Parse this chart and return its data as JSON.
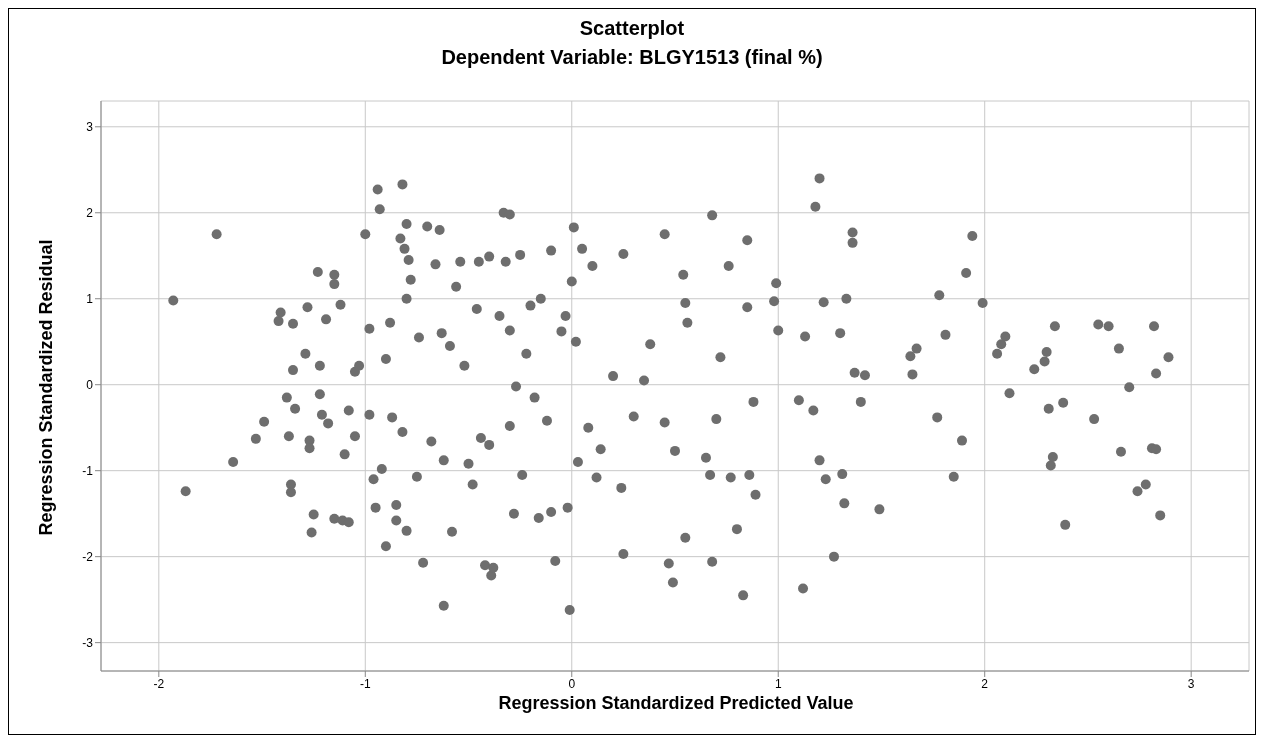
{
  "chart_data": {
    "type": "scatter",
    "title": "Scatterplot",
    "subtitle": "Dependent Variable: BLGY1513 (final %)",
    "xlabel": "Regression Standardized Predicted Value",
    "ylabel": "Regression Standardized Residual",
    "xlim": [
      -2.28,
      3.28
    ],
    "ylim": [
      -3.33,
      3.3
    ],
    "xticks": [
      -2,
      -1,
      0,
      1,
      2,
      3
    ],
    "yticks": [
      -3,
      -2,
      -1,
      0,
      1,
      2,
      3
    ],
    "grid": true,
    "marker": "circle",
    "legend": false,
    "series": [
      {
        "color": "#6e6e6e",
        "x": [
          -1.93,
          -1.87,
          -1.72,
          -1.64,
          -1.53,
          -1.49,
          -1.42,
          -1.41,
          -1.38,
          -1.37,
          -1.36,
          -1.36,
          -1.35,
          -1.34,
          -1.35,
          -1.28,
          -1.29,
          -1.27,
          -1.27,
          -1.25,
          -1.26,
          -1.23,
          -1.22,
          -1.22,
          -1.21,
          -1.19,
          -1.18,
          -1.15,
          -1.15,
          -1.15,
          -1.11,
          -1.08,
          -1.12,
          -1.1,
          -1.08,
          -1.05,
          -1.05,
          -1.03,
          -1.0,
          -0.98,
          -0.98,
          -0.96,
          -0.95,
          -0.94,
          -0.93,
          -0.92,
          -0.9,
          -0.9,
          -0.88,
          -0.87,
          -0.85,
          -0.85,
          -0.82,
          -0.83,
          -0.81,
          -0.8,
          -0.79,
          -0.78,
          -0.8,
          -0.82,
          -0.8,
          -0.75,
          -0.74,
          -0.72,
          -0.7,
          -0.68,
          -0.66,
          -0.64,
          -0.63,
          -0.62,
          -0.62,
          -0.59,
          -0.58,
          -0.56,
          -0.54,
          -0.52,
          -0.5,
          -0.48,
          -0.46,
          -0.45,
          -0.44,
          -0.42,
          -0.4,
          -0.4,
          -0.39,
          -0.38,
          -0.35,
          -0.33,
          -0.32,
          -0.3,
          -0.3,
          -0.3,
          -0.28,
          -0.27,
          -0.25,
          -0.24,
          -0.22,
          -0.2,
          -0.18,
          -0.16,
          -0.15,
          -0.12,
          -0.1,
          -0.1,
          -0.08,
          -0.05,
          -0.03,
          -0.02,
          -0.01,
          0.0,
          0.01,
          0.02,
          0.03,
          0.05,
          0.08,
          0.1,
          0.12,
          0.14,
          0.2,
          0.24,
          0.25,
          0.25,
          0.3,
          0.35,
          0.38,
          0.45,
          0.45,
          0.47,
          0.49,
          0.5,
          0.54,
          0.55,
          0.55,
          0.56,
          0.65,
          0.67,
          0.68,
          0.68,
          0.7,
          0.72,
          0.76,
          0.77,
          0.8,
          0.83,
          0.85,
          0.85,
          0.86,
          0.88,
          0.89,
          0.98,
          0.99,
          1.0,
          1.1,
          1.12,
          1.13,
          1.17,
          1.18,
          1.2,
          1.2,
          1.22,
          1.23,
          1.27,
          1.3,
          1.31,
          1.32,
          1.33,
          1.36,
          1.36,
          1.37,
          1.4,
          1.42,
          1.49,
          1.64,
          1.65,
          1.67,
          1.77,
          1.78,
          1.81,
          1.85,
          1.89,
          1.91,
          1.94,
          1.99,
          2.06,
          2.08,
          2.1,
          2.12,
          2.24,
          2.29,
          2.3,
          2.31,
          2.32,
          2.33,
          2.34,
          2.38,
          2.39,
          2.53,
          2.55,
          2.6,
          2.65,
          2.66,
          2.7,
          2.74,
          2.78,
          2.81,
          2.83,
          2.82,
          2.83,
          2.85,
          2.89
        ],
        "values": [
          0.98,
          -1.24,
          1.75,
          -0.9,
          -0.63,
          -0.43,
          0.74,
          0.84,
          -0.15,
          -0.6,
          -1.16,
          -1.25,
          0.17,
          -0.28,
          0.71,
          0.9,
          0.36,
          -0.65,
          -0.74,
          -1.51,
          -1.72,
          1.31,
          0.22,
          -0.11,
          -0.35,
          0.76,
          -0.45,
          1.28,
          1.17,
          -1.56,
          -1.58,
          -1.6,
          0.93,
          -0.81,
          -0.3,
          0.15,
          -0.6,
          0.22,
          1.75,
          0.65,
          -0.35,
          -1.1,
          -1.43,
          2.27,
          2.04,
          -0.98,
          -1.88,
          0.3,
          0.72,
          -0.38,
          -1.4,
          -1.58,
          2.33,
          1.7,
          1.58,
          1.87,
          1.45,
          1.22,
          1.0,
          -0.55,
          -1.7,
          -1.07,
          0.55,
          -2.07,
          1.84,
          -0.66,
          1.4,
          1.8,
          0.6,
          -0.88,
          -2.57,
          0.45,
          -1.71,
          1.14,
          1.43,
          0.22,
          -0.92,
          -1.16,
          0.88,
          1.43,
          -0.62,
          -2.1,
          1.49,
          -0.7,
          -2.22,
          -2.13,
          0.8,
          2.0,
          1.43,
          1.98,
          0.63,
          -0.48,
          -1.5,
          -0.02,
          1.51,
          -1.05,
          0.36,
          0.92,
          -0.15,
          -1.55,
          1.0,
          -0.42,
          1.56,
          -1.48,
          -2.05,
          0.62,
          0.8,
          -1.43,
          -2.62,
          1.2,
          1.83,
          0.5,
          -0.9,
          1.58,
          -0.5,
          1.38,
          -1.08,
          -0.75,
          0.1,
          -1.2,
          -1.97,
          1.52,
          -0.37,
          0.05,
          0.47,
          1.75,
          -0.44,
          -2.08,
          -2.3,
          -0.77,
          1.28,
          0.95,
          -1.78,
          0.72,
          -0.85,
          -1.05,
          -2.06,
          1.97,
          -0.4,
          0.32,
          1.38,
          -1.08,
          -1.68,
          -2.45,
          1.68,
          0.9,
          -1.05,
          -0.2,
          -1.28,
          0.97,
          1.18,
          0.63,
          -0.18,
          -2.37,
          0.56,
          -0.3,
          2.07,
          2.4,
          -0.88,
          0.96,
          -1.1,
          -2.0,
          0.6,
          -1.04,
          -1.38,
          1.0,
          1.65,
          1.77,
          0.14,
          -0.2,
          0.11,
          -1.45,
          0.33,
          0.12,
          0.42,
          -0.38,
          1.04,
          0.58,
          -1.07,
          -0.65,
          1.3,
          1.73,
          0.95,
          0.36,
          0.47,
          0.56,
          -0.1,
          0.18,
          0.27,
          0.38,
          -0.28,
          -0.94,
          -0.84,
          0.68,
          -0.21,
          -1.63,
          -0.4,
          0.7,
          0.68,
          0.42,
          -0.78,
          -0.03,
          -1.24,
          -1.16,
          -0.74,
          -0.75,
          0.68,
          0.13,
          -1.52,
          0.32
        ]
      }
    ]
  }
}
